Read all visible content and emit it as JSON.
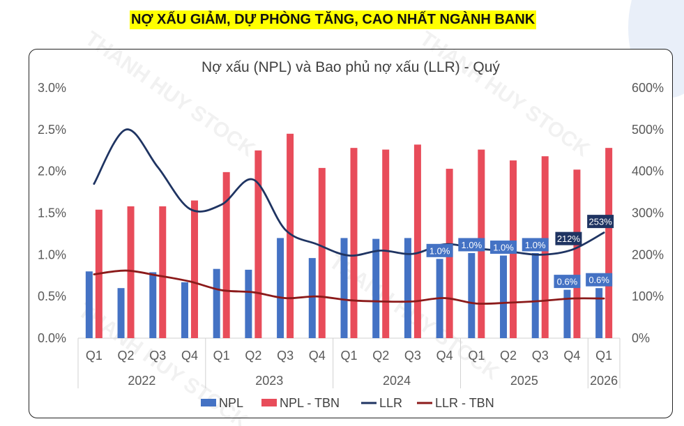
{
  "headline": "NỢ XẤU GIẢM, DỰ PHÒNG TĂNG, CAO NHẤT NGÀNH BANK",
  "watermark": "THANH HUY STOCK",
  "chart_data": {
    "type": "bar",
    "title": "Nợ xấu (NPL) và Bao phủ nợ xấu (LLR) - Quý",
    "categories": [
      "Q1",
      "Q2",
      "Q3",
      "Q4",
      "Q1",
      "Q2",
      "Q3",
      "Q4",
      "Q1",
      "Q2",
      "Q3",
      "Q4",
      "Q1",
      "Q2",
      "Q3",
      "Q4",
      "Q1"
    ],
    "years": [
      {
        "label": "2022",
        "count": 4
      },
      {
        "label": "2023",
        "count": 4
      },
      {
        "label": "2024",
        "count": 4
      },
      {
        "label": "2025",
        "count": 4
      },
      {
        "label": "2026",
        "count": 1
      }
    ],
    "y_left": {
      "min": 0,
      "max": 3.0,
      "ticks": [
        "0.0%",
        "0.5%",
        "1.0%",
        "1.5%",
        "2.0%",
        "2.5%",
        "3.0%"
      ]
    },
    "y_right": {
      "min": 0,
      "max": 600,
      "ticks": [
        "0%",
        "100%",
        "200%",
        "300%",
        "400%",
        "500%",
        "600%"
      ]
    },
    "grid": false,
    "legend_position": "bottom",
    "series": [
      {
        "name": "NPL",
        "kind": "bar",
        "axis": "left",
        "color": "#4472c4",
        "values": [
          0.8,
          0.6,
          0.79,
          0.67,
          0.83,
          0.82,
          1.2,
          0.96,
          1.2,
          1.19,
          1.2,
          0.95,
          1.02,
          0.99,
          1.02,
          0.58,
          0.6
        ]
      },
      {
        "name": "NPL - TBN",
        "kind": "bar",
        "axis": "left",
        "color": "#e84c5a",
        "values": [
          1.54,
          1.58,
          1.58,
          1.65,
          1.99,
          2.25,
          2.45,
          2.04,
          2.28,
          2.26,
          2.32,
          2.03,
          2.26,
          2.13,
          2.18,
          2.02,
          2.28
        ]
      },
      {
        "name": "LLR",
        "kind": "line",
        "axis": "right",
        "color": "#1f3462",
        "values": [
          370,
          500,
          410,
          310,
          320,
          380,
          260,
          225,
          198,
          210,
          202,
          225,
          215,
          208,
          200,
          212,
          253
        ]
      },
      {
        "name": "LLR - TBN",
        "kind": "line",
        "axis": "right",
        "color": "#8b1a1a",
        "values": [
          153,
          162,
          150,
          136,
          115,
          110,
          96,
          100,
          91,
          88,
          88,
          96,
          83,
          85,
          89,
          95,
          95
        ]
      }
    ],
    "data_labels": [
      {
        "series": "NPL",
        "index": 11,
        "text": "1.0%"
      },
      {
        "series": "NPL",
        "index": 12,
        "text": "1.0%"
      },
      {
        "series": "NPL",
        "index": 13,
        "text": "1.0%"
      },
      {
        "series": "NPL",
        "index": 14,
        "text": "1.0%"
      },
      {
        "series": "NPL",
        "index": 15,
        "text": "0.6%"
      },
      {
        "series": "NPL",
        "index": 16,
        "text": "0.6%"
      },
      {
        "series": "LLR",
        "index": 15,
        "text": "212%"
      },
      {
        "series": "LLR",
        "index": 16,
        "text": "253%"
      }
    ]
  }
}
